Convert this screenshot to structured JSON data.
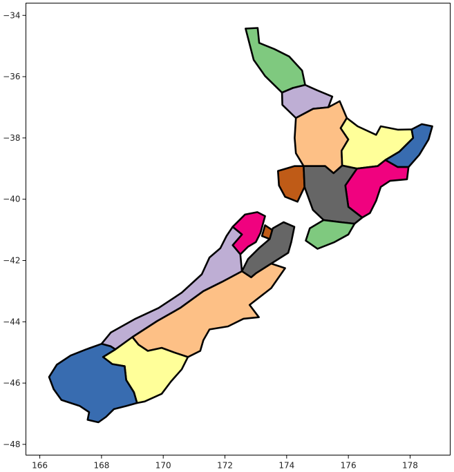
{
  "chart_data": {
    "type": "map",
    "title": "",
    "xlabel": "",
    "ylabel": "",
    "xlim": [
      165.55,
      179.3
    ],
    "ylim": [
      -48.35,
      -33.6
    ],
    "x_ticks": [
      166,
      168,
      170,
      172,
      174,
      176,
      178
    ],
    "y_ticks": [
      -34,
      -36,
      -38,
      -40,
      -42,
      -44,
      -46,
      -48
    ],
    "x_tick_labels": [
      "166",
      "168",
      "170",
      "172",
      "174",
      "176",
      "178"
    ],
    "y_tick_labels": [
      "−34",
      "−36",
      "−38",
      "−40",
      "−42",
      "−44",
      "−46",
      "−48"
    ],
    "grid": false,
    "legend": "none",
    "colormap": "Accent",
    "regions": [
      {
        "color": "#7fc97f",
        "outline": [
          [
            172.67,
            -34.43
          ],
          [
            173.06,
            -34.41
          ],
          [
            173.11,
            -34.9
          ],
          [
            173.6,
            -35.1
          ],
          [
            174.08,
            -35.34
          ],
          [
            174.5,
            -35.8
          ],
          [
            174.6,
            -36.27
          ],
          [
            174.2,
            -36.37
          ],
          [
            173.85,
            -36.52
          ],
          [
            173.3,
            -35.98
          ],
          [
            172.93,
            -35.45
          ],
          [
            172.67,
            -34.43
          ]
        ]
      },
      {
        "color": "#beaed4",
        "outline": [
          [
            173.85,
            -36.52
          ],
          [
            174.2,
            -36.37
          ],
          [
            174.6,
            -36.27
          ],
          [
            175.0,
            -36.45
          ],
          [
            175.48,
            -36.65
          ],
          [
            175.35,
            -37.0
          ],
          [
            174.86,
            -37.05
          ],
          [
            174.3,
            -37.35
          ],
          [
            173.86,
            -36.92
          ],
          [
            173.85,
            -36.52
          ]
        ]
      },
      {
        "color": "#fdc086",
        "outline": [
          [
            174.3,
            -37.35
          ],
          [
            174.86,
            -37.05
          ],
          [
            175.35,
            -37.0
          ],
          [
            175.72,
            -36.8
          ],
          [
            175.95,
            -37.35
          ],
          [
            175.75,
            -37.68
          ],
          [
            176.0,
            -38.05
          ],
          [
            175.78,
            -38.42
          ],
          [
            175.8,
            -38.9
          ],
          [
            175.52,
            -39.15
          ],
          [
            175.25,
            -38.92
          ],
          [
            174.55,
            -38.92
          ],
          [
            174.3,
            -38.5
          ],
          [
            174.26,
            -38.0
          ],
          [
            174.3,
            -37.35
          ]
        ]
      },
      {
        "color": "#ffff99",
        "outline": [
          [
            175.95,
            -37.35
          ],
          [
            176.3,
            -37.62
          ],
          [
            176.9,
            -37.9
          ],
          [
            177.05,
            -37.62
          ],
          [
            177.6,
            -37.73
          ],
          [
            178.05,
            -37.72
          ],
          [
            178.1,
            -38.0
          ],
          [
            177.65,
            -38.45
          ],
          [
            177.2,
            -38.72
          ],
          [
            176.95,
            -38.92
          ],
          [
            176.28,
            -39.0
          ],
          [
            175.8,
            -38.9
          ],
          [
            175.78,
            -38.42
          ],
          [
            176.0,
            -38.05
          ],
          [
            175.75,
            -37.68
          ],
          [
            175.95,
            -37.35
          ]
        ]
      },
      {
        "color": "#386cb0",
        "outline": [
          [
            178.05,
            -37.72
          ],
          [
            178.38,
            -37.55
          ],
          [
            178.72,
            -37.62
          ],
          [
            178.6,
            -38.05
          ],
          [
            178.3,
            -38.55
          ],
          [
            177.95,
            -38.95
          ],
          [
            177.6,
            -38.95
          ],
          [
            177.2,
            -38.72
          ],
          [
            177.65,
            -38.45
          ],
          [
            178.1,
            -38.0
          ],
          [
            178.05,
            -37.72
          ]
        ]
      },
      {
        "color": "#f0027f",
        "outline": [
          [
            176.28,
            -39.0
          ],
          [
            176.95,
            -38.92
          ],
          [
            177.2,
            -38.72
          ],
          [
            177.6,
            -38.95
          ],
          [
            177.95,
            -38.95
          ],
          [
            177.9,
            -39.35
          ],
          [
            177.35,
            -39.4
          ],
          [
            177.05,
            -39.6
          ],
          [
            176.9,
            -40.05
          ],
          [
            176.7,
            -40.45
          ],
          [
            176.45,
            -40.6
          ],
          [
            176.0,
            -40.25
          ],
          [
            175.9,
            -39.55
          ],
          [
            176.28,
            -39.0
          ]
        ]
      },
      {
        "color": "#bf5b17",
        "outline": [
          [
            173.72,
            -39.08
          ],
          [
            174.25,
            -38.92
          ],
          [
            174.55,
            -38.92
          ],
          [
            174.58,
            -39.6
          ],
          [
            174.35,
            -40.08
          ],
          [
            173.95,
            -39.92
          ],
          [
            173.75,
            -39.55
          ],
          [
            173.72,
            -39.08
          ]
        ]
      },
      {
        "color": "#666666",
        "outline": [
          [
            174.55,
            -38.92
          ],
          [
            175.25,
            -38.92
          ],
          [
            175.52,
            -39.15
          ],
          [
            175.8,
            -38.9
          ],
          [
            176.28,
            -39.0
          ],
          [
            175.9,
            -39.55
          ],
          [
            176.0,
            -40.25
          ],
          [
            176.45,
            -40.6
          ],
          [
            176.2,
            -40.8
          ],
          [
            175.75,
            -40.75
          ],
          [
            175.2,
            -40.68
          ],
          [
            174.85,
            -40.35
          ],
          [
            174.58,
            -39.6
          ],
          [
            174.55,
            -38.92
          ]
        ]
      },
      {
        "color": "#7fc97f",
        "outline": [
          [
            175.2,
            -40.68
          ],
          [
            175.75,
            -40.75
          ],
          [
            176.2,
            -40.8
          ],
          [
            176.0,
            -41.15
          ],
          [
            175.55,
            -41.4
          ],
          [
            175.0,
            -41.62
          ],
          [
            174.62,
            -41.35
          ],
          [
            174.75,
            -40.95
          ],
          [
            175.2,
            -40.68
          ]
        ]
      },
      {
        "color": "#f0027f",
        "outline": [
          [
            172.65,
            -40.5
          ],
          [
            173.05,
            -40.42
          ],
          [
            173.3,
            -40.55
          ],
          [
            173.15,
            -41.1
          ],
          [
            173.0,
            -41.4
          ],
          [
            172.75,
            -41.55
          ],
          [
            172.5,
            -41.8
          ],
          [
            172.25,
            -41.5
          ],
          [
            172.55,
            -41.15
          ],
          [
            172.25,
            -40.9
          ],
          [
            172.65,
            -40.5
          ]
        ]
      },
      {
        "color": "#bf5b17",
        "outline": [
          [
            173.3,
            -40.85
          ],
          [
            173.6,
            -41.05
          ],
          [
            173.45,
            -41.3
          ],
          [
            173.2,
            -41.2
          ],
          [
            173.3,
            -40.85
          ]
        ]
      },
      {
        "color": "#666666",
        "outline": [
          [
            173.55,
            -40.95
          ],
          [
            173.9,
            -40.75
          ],
          [
            174.25,
            -40.9
          ],
          [
            174.15,
            -41.4
          ],
          [
            174.05,
            -41.75
          ],
          [
            173.5,
            -42.1
          ],
          [
            173.0,
            -42.42
          ],
          [
            172.85,
            -42.55
          ],
          [
            172.55,
            -42.35
          ],
          [
            172.75,
            -41.95
          ],
          [
            173.1,
            -41.6
          ],
          [
            173.45,
            -41.3
          ],
          [
            173.55,
            -40.95
          ]
        ]
      },
      {
        "color": "#beaed4",
        "outline": [
          [
            172.25,
            -40.9
          ],
          [
            172.55,
            -41.15
          ],
          [
            172.25,
            -41.5
          ],
          [
            172.5,
            -41.8
          ],
          [
            172.55,
            -42.35
          ],
          [
            171.9,
            -42.7
          ],
          [
            171.3,
            -43.0
          ],
          [
            170.55,
            -43.55
          ],
          [
            169.8,
            -43.98
          ],
          [
            169.0,
            -44.5
          ],
          [
            168.45,
            -44.9
          ],
          [
            168.3,
            -44.8
          ],
          [
            168.0,
            -44.72
          ],
          [
            168.3,
            -44.35
          ],
          [
            169.1,
            -43.9
          ],
          [
            169.85,
            -43.55
          ],
          [
            170.6,
            -43.05
          ],
          [
            171.25,
            -42.45
          ],
          [
            171.5,
            -41.9
          ],
          [
            171.85,
            -41.6
          ],
          [
            172.05,
            -41.2
          ],
          [
            172.25,
            -40.9
          ]
        ]
      },
      {
        "color": "#fdc086",
        "outline": [
          [
            172.85,
            -42.55
          ],
          [
            173.0,
            -42.42
          ],
          [
            173.5,
            -42.1
          ],
          [
            173.95,
            -42.25
          ],
          [
            173.5,
            -42.9
          ],
          [
            172.8,
            -43.45
          ],
          [
            173.1,
            -43.85
          ],
          [
            172.6,
            -43.9
          ],
          [
            172.1,
            -44.15
          ],
          [
            171.5,
            -44.25
          ],
          [
            171.3,
            -44.6
          ],
          [
            171.2,
            -44.95
          ],
          [
            170.8,
            -45.15
          ],
          [
            170.35,
            -45.0
          ],
          [
            169.95,
            -44.85
          ],
          [
            169.5,
            -44.95
          ],
          [
            169.2,
            -44.75
          ],
          [
            169.0,
            -44.5
          ],
          [
            169.8,
            -43.98
          ],
          [
            170.55,
            -43.55
          ],
          [
            171.3,
            -43.0
          ],
          [
            171.9,
            -42.7
          ],
          [
            172.55,
            -42.35
          ],
          [
            172.85,
            -42.55
          ]
        ]
      },
      {
        "color": "#ffff99",
        "outline": [
          [
            168.45,
            -44.9
          ],
          [
            169.0,
            -44.5
          ],
          [
            169.2,
            -44.75
          ],
          [
            169.5,
            -44.95
          ],
          [
            169.95,
            -44.85
          ],
          [
            170.35,
            -45.0
          ],
          [
            170.8,
            -45.15
          ],
          [
            170.6,
            -45.55
          ],
          [
            170.25,
            -45.95
          ],
          [
            169.95,
            -46.35
          ],
          [
            169.4,
            -46.6
          ],
          [
            169.15,
            -46.65
          ],
          [
            169.05,
            -46.3
          ],
          [
            168.8,
            -45.9
          ],
          [
            168.75,
            -45.45
          ],
          [
            168.35,
            -45.38
          ],
          [
            168.05,
            -45.15
          ],
          [
            168.45,
            -44.9
          ]
        ]
      },
      {
        "color": "#386cb0",
        "outline": [
          [
            168.0,
            -44.72
          ],
          [
            168.3,
            -44.8
          ],
          [
            168.45,
            -44.9
          ],
          [
            168.05,
            -45.15
          ],
          [
            168.35,
            -45.38
          ],
          [
            168.75,
            -45.45
          ],
          [
            168.8,
            -45.9
          ],
          [
            169.05,
            -46.3
          ],
          [
            169.15,
            -46.65
          ],
          [
            168.8,
            -46.75
          ],
          [
            168.4,
            -46.85
          ],
          [
            168.15,
            -47.1
          ],
          [
            167.9,
            -47.28
          ],
          [
            167.55,
            -47.2
          ],
          [
            167.6,
            -46.95
          ],
          [
            167.3,
            -46.75
          ],
          [
            167.0,
            -46.65
          ],
          [
            166.7,
            -46.55
          ],
          [
            166.45,
            -46.2
          ],
          [
            166.3,
            -45.8
          ],
          [
            166.55,
            -45.4
          ],
          [
            167.0,
            -45.1
          ],
          [
            167.5,
            -44.9
          ],
          [
            168.0,
            -44.72
          ]
        ]
      }
    ]
  }
}
